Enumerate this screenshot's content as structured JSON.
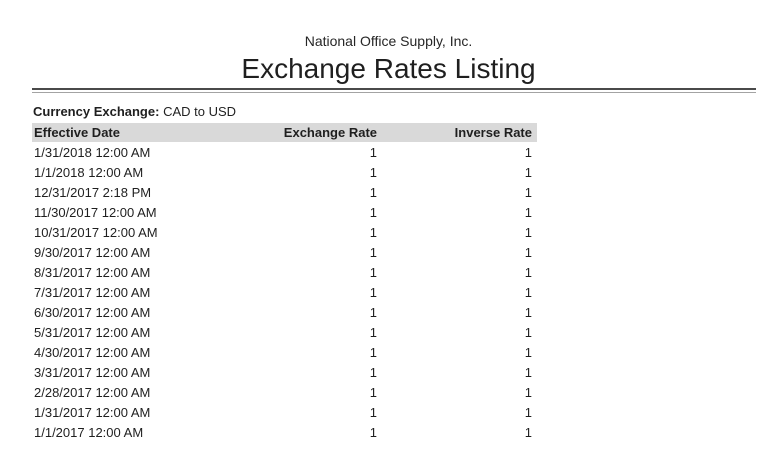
{
  "header": {
    "company": "National Office Supply, Inc.",
    "title": "Exchange Rates Listing"
  },
  "filter": {
    "label": "Currency Exchange:",
    "value": "CAD to USD"
  },
  "table": {
    "columns": [
      "Effective Date",
      "Exchange Rate",
      "Inverse Rate"
    ],
    "rows": [
      [
        "1/31/2018 12:00 AM",
        "1",
        "1"
      ],
      [
        "1/1/2018 12:00 AM",
        "1",
        "1"
      ],
      [
        "12/31/2017 2:18 PM",
        "1",
        "1"
      ],
      [
        "11/30/2017 12:00 AM",
        "1",
        "1"
      ],
      [
        "10/31/2017 12:00 AM",
        "1",
        "1"
      ],
      [
        "9/30/2017 12:00 AM",
        "1",
        "1"
      ],
      [
        "8/31/2017 12:00 AM",
        "1",
        "1"
      ],
      [
        "7/31/2017 12:00 AM",
        "1",
        "1"
      ],
      [
        "6/30/2017 12:00 AM",
        "1",
        "1"
      ],
      [
        "5/31/2017 12:00 AM",
        "1",
        "1"
      ],
      [
        "4/30/2017 12:00 AM",
        "1",
        "1"
      ],
      [
        "3/31/2017 12:00 AM",
        "1",
        "1"
      ],
      [
        "2/28/2017 12:00 AM",
        "1",
        "1"
      ],
      [
        "1/31/2017 12:00 AM",
        "1",
        "1"
      ],
      [
        "1/1/2017 12:00 AM",
        "1",
        "1"
      ]
    ]
  },
  "colors": {
    "header_row_bg": "#d9d9d9",
    "text": "#1f1f1f",
    "divider_dark": "#4a4a4a",
    "divider_light": "#a3a3a3"
  }
}
